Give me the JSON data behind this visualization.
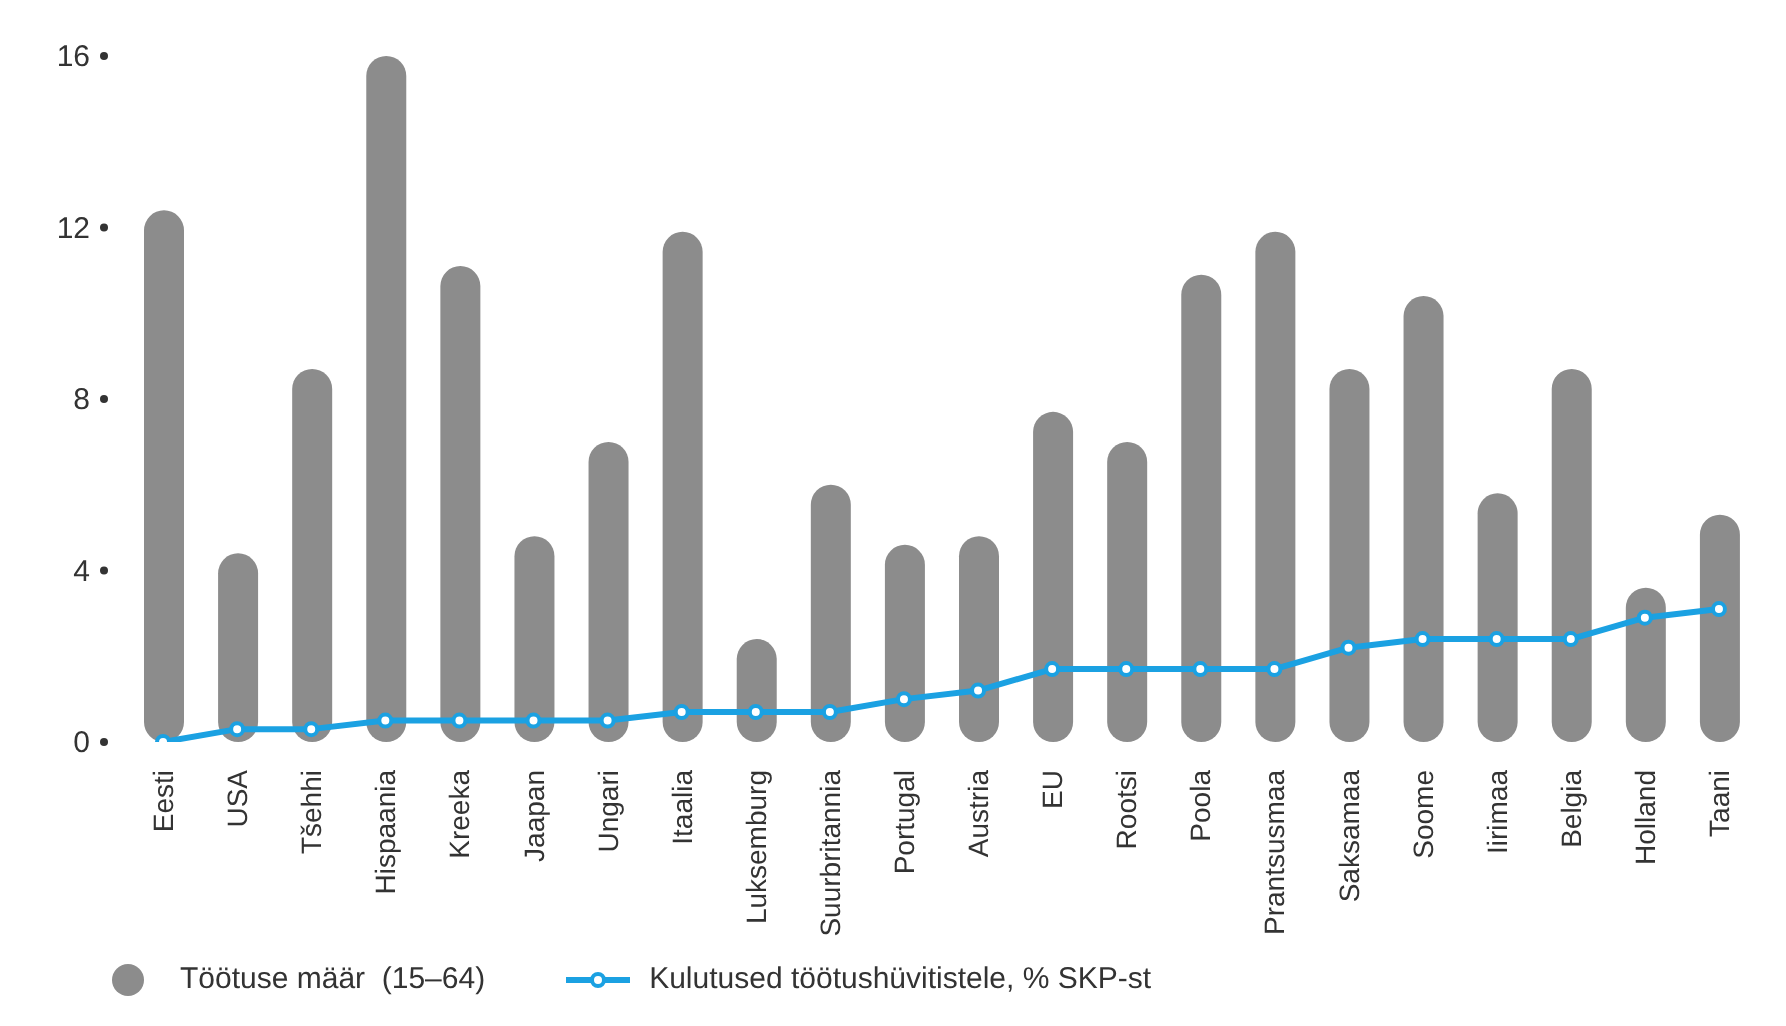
{
  "chart_data": {
    "type": "bar",
    "categories": [
      "Eesti",
      "USA",
      "Tšehhi",
      "Hispaania",
      "Kreeka",
      "Jaapan",
      "Ungari",
      "Itaalia",
      "Luksemburg",
      "Suurbritannia",
      "Portugal",
      "Austria",
      "EU",
      "Rootsi",
      "Poola",
      "Prantsusmaa",
      "Saksamaa",
      "Soome",
      "Iirimaa",
      "Belgia",
      "Holland",
      "Taani"
    ],
    "series": [
      {
        "name": "Töötuse määr  (15–64)",
        "color": "#8c8c8c",
        "values": [
          12.4,
          4.4,
          8.7,
          16,
          11.1,
          4.8,
          7.0,
          11.9,
          2.4,
          6.0,
          4.6,
          4.8,
          7.7,
          7.0,
          10.9,
          11.9,
          8.7,
          10.4,
          5.8,
          8.7,
          3.6,
          5.3
        ]
      },
      {
        "name": "Kulutused töötushüvitistele, % SKP-st",
        "type": "line",
        "color": "#1ba1e2",
        "values": [
          0,
          0.3,
          0.3,
          0.5,
          0.5,
          0.5,
          0.5,
          0.7,
          0.7,
          0.7,
          1.0,
          1.2,
          1.7,
          1.7,
          1.7,
          1.7,
          2.2,
          2.4,
          2.4,
          2.4,
          2.9,
          3.1
        ]
      }
    ],
    "ylim": [
      0,
      16
    ],
    "yticks": [
      0,
      4,
      8,
      12,
      16
    ],
    "grid": false,
    "legend": "bottom left",
    "marker": "circle"
  }
}
